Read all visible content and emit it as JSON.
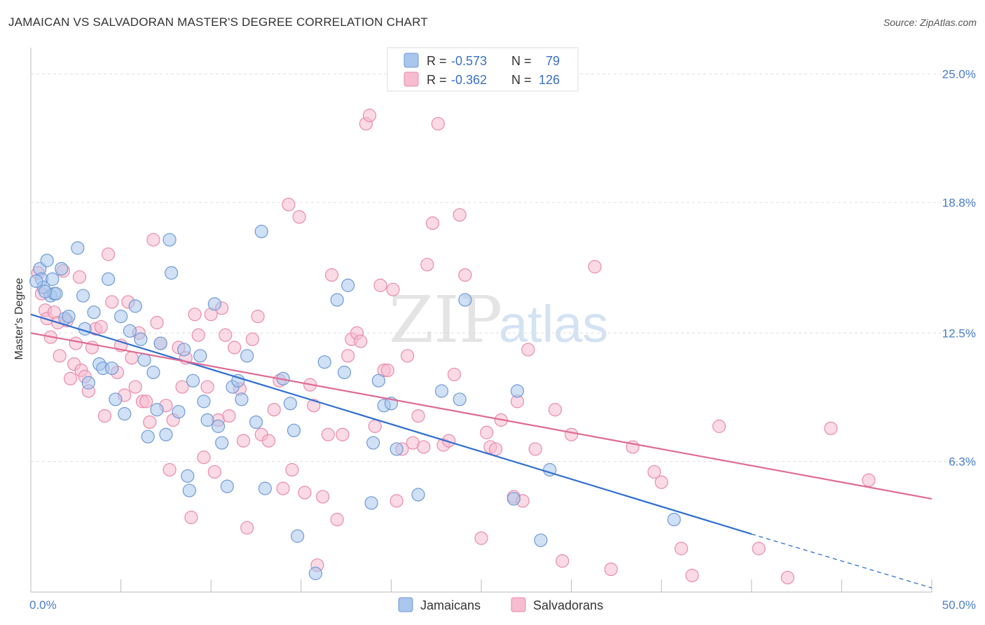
{
  "title": "JAMAICAN VS SALVADORAN MASTER'S DEGREE CORRELATION CHART",
  "source": "Source: ZipAtlas.com",
  "watermark": {
    "zip": "ZIP",
    "atlas": "atlas"
  },
  "legend": {
    "r_label": "R =",
    "n_label": "N =",
    "jamaicans": {
      "r": "-0.573",
      "n": "79"
    },
    "salvadorans": {
      "r": "-0.362",
      "n": "126"
    }
  },
  "colors": {
    "jamaicans_fill": "#a9c6ec",
    "jamaicans_stroke": "#6f9ad6",
    "jamaicans_line": "#2f6fd0",
    "salvadorans_fill": "#f6bcd0",
    "salvadorans_stroke": "#e98bab",
    "salvadorans_line": "#e06a93",
    "tick_text": "#4a7dc9",
    "grid": "#dddddd"
  },
  "chart_data": {
    "type": "scatter",
    "xlabel": "",
    "ylabel": "Master's Degree",
    "xlim": [
      0,
      50
    ],
    "ylim": [
      0,
      26
    ],
    "x_tick_labels": {
      "min": "0.0%",
      "max": "50.0%"
    },
    "y_ticks": [
      {
        "value": 6.3,
        "label": "6.3%"
      },
      {
        "value": 12.5,
        "label": "12.5%"
      },
      {
        "value": 18.8,
        "label": "18.8%"
      },
      {
        "value": 25.0,
        "label": "25.0%"
      }
    ],
    "legend_bottom": [
      "Jamaicans",
      "Salvadorans"
    ],
    "series": [
      {
        "name": "Jamaicans",
        "trend": {
          "x": [
            0,
            40,
            50
          ],
          "y": [
            13.4,
            2.8,
            0.2
          ],
          "solid_until": 40
        },
        "points": [
          [
            0.5,
            15.6
          ],
          [
            0.6,
            15.1
          ],
          [
            0.7,
            14.7
          ],
          [
            0.9,
            16.0
          ],
          [
            1.1,
            14.3
          ],
          [
            1.2,
            15.1
          ],
          [
            1.3,
            14.4
          ],
          [
            1.4,
            14.4
          ],
          [
            1.7,
            15.6
          ],
          [
            1.9,
            13.2
          ],
          [
            2.1,
            13.3
          ],
          [
            2.6,
            16.6
          ],
          [
            2.9,
            14.3
          ],
          [
            3.0,
            12.7
          ],
          [
            3.2,
            10.1
          ],
          [
            3.5,
            13.5
          ],
          [
            3.8,
            11.0
          ],
          [
            4.0,
            10.8
          ],
          [
            4.3,
            15.1
          ],
          [
            4.5,
            10.8
          ],
          [
            4.7,
            9.3
          ],
          [
            5.0,
            13.3
          ],
          [
            5.2,
            8.6
          ],
          [
            5.5,
            12.6
          ],
          [
            5.8,
            13.8
          ],
          [
            6.1,
            12.2
          ],
          [
            6.3,
            11.2
          ],
          [
            6.5,
            7.5
          ],
          [
            6.8,
            10.6
          ],
          [
            7.0,
            8.8
          ],
          [
            7.2,
            12.0
          ],
          [
            7.5,
            7.6
          ],
          [
            7.7,
            17.0
          ],
          [
            7.8,
            15.4
          ],
          [
            8.2,
            8.7
          ],
          [
            8.5,
            11.7
          ],
          [
            8.7,
            5.6
          ],
          [
            8.8,
            4.9
          ],
          [
            9.0,
            10.2
          ],
          [
            9.4,
            11.4
          ],
          [
            9.6,
            9.2
          ],
          [
            9.8,
            8.3
          ],
          [
            10.2,
            13.9
          ],
          [
            10.4,
            8.0
          ],
          [
            10.6,
            7.2
          ],
          [
            10.9,
            5.1
          ],
          [
            11.2,
            9.9
          ],
          [
            11.5,
            10.2
          ],
          [
            11.7,
            9.3
          ],
          [
            12.0,
            11.4
          ],
          [
            12.5,
            8.2
          ],
          [
            12.8,
            17.4
          ],
          [
            13.0,
            5.0
          ],
          [
            14.0,
            10.3
          ],
          [
            14.4,
            9.1
          ],
          [
            14.6,
            7.8
          ],
          [
            14.8,
            2.7
          ],
          [
            15.8,
            0.9
          ],
          [
            16.3,
            11.1
          ],
          [
            17.0,
            14.1
          ],
          [
            17.4,
            10.6
          ],
          [
            17.6,
            14.8
          ],
          [
            18.9,
            4.3
          ],
          [
            19.0,
            7.2
          ],
          [
            19.3,
            10.2
          ],
          [
            19.6,
            9.0
          ],
          [
            20.0,
            9.1
          ],
          [
            20.3,
            6.9
          ],
          [
            21.5,
            4.7
          ],
          [
            22.8,
            9.7
          ],
          [
            23.8,
            9.3
          ],
          [
            24.1,
            14.1
          ],
          [
            26.8,
            4.5
          ],
          [
            27.0,
            9.7
          ],
          [
            28.3,
            2.5
          ],
          [
            28.8,
            5.9
          ],
          [
            35.7,
            3.5
          ],
          [
            0.3,
            15.0
          ],
          [
            0.8,
            14.5
          ]
        ]
      },
      {
        "name": "Salvadorans",
        "trend": {
          "x": [
            0,
            50
          ],
          "y": [
            12.5,
            4.5
          ],
          "solid_until": 50
        },
        "points": [
          [
            0.4,
            15.4
          ],
          [
            0.6,
            14.4
          ],
          [
            0.8,
            13.6
          ],
          [
            0.9,
            13.2
          ],
          [
            1.1,
            12.3
          ],
          [
            1.3,
            13.5
          ],
          [
            1.6,
            11.4
          ],
          [
            1.8,
            15.5
          ],
          [
            2.0,
            13.1
          ],
          [
            2.2,
            10.3
          ],
          [
            2.4,
            11.0
          ],
          [
            2.7,
            15.2
          ],
          [
            2.8,
            10.7
          ],
          [
            3.0,
            10.4
          ],
          [
            3.2,
            9.7
          ],
          [
            3.4,
            11.8
          ],
          [
            3.6,
            12.7
          ],
          [
            3.9,
            12.8
          ],
          [
            4.1,
            8.5
          ],
          [
            4.3,
            16.3
          ],
          [
            4.5,
            14.0
          ],
          [
            4.8,
            10.6
          ],
          [
            5.0,
            11.9
          ],
          [
            5.2,
            9.5
          ],
          [
            5.4,
            14.0
          ],
          [
            5.6,
            11.3
          ],
          [
            5.8,
            9.9
          ],
          [
            6.0,
            12.5
          ],
          [
            6.2,
            9.2
          ],
          [
            6.4,
            9.2
          ],
          [
            6.6,
            8.2
          ],
          [
            6.8,
            17.0
          ],
          [
            7.0,
            13.0
          ],
          [
            7.2,
            12.0
          ],
          [
            7.5,
            9.0
          ],
          [
            7.7,
            5.9
          ],
          [
            7.9,
            8.3
          ],
          [
            8.2,
            11.8
          ],
          [
            8.4,
            9.9
          ],
          [
            8.6,
            11.3
          ],
          [
            8.9,
            3.6
          ],
          [
            9.1,
            13.4
          ],
          [
            9.3,
            12.4
          ],
          [
            9.6,
            6.5
          ],
          [
            9.8,
            9.9
          ],
          [
            10.0,
            13.4
          ],
          [
            10.2,
            5.8
          ],
          [
            10.4,
            8.3
          ],
          [
            10.6,
            13.7
          ],
          [
            10.8,
            12.4
          ],
          [
            11.0,
            8.5
          ],
          [
            11.3,
            11.8
          ],
          [
            11.6,
            9.8
          ],
          [
            11.8,
            7.3
          ],
          [
            12.0,
            3.1
          ],
          [
            12.3,
            12.2
          ],
          [
            12.6,
            13.3
          ],
          [
            12.8,
            7.6
          ],
          [
            13.2,
            7.3
          ],
          [
            13.5,
            8.8
          ],
          [
            13.8,
            10.2
          ],
          [
            14.0,
            5.0
          ],
          [
            14.3,
            18.7
          ],
          [
            14.5,
            5.9
          ],
          [
            14.9,
            18.1
          ],
          [
            15.2,
            4.8
          ],
          [
            15.5,
            10.0
          ],
          [
            15.7,
            9.0
          ],
          [
            15.9,
            1.3
          ],
          [
            16.2,
            4.6
          ],
          [
            16.5,
            7.6
          ],
          [
            16.7,
            15.3
          ],
          [
            17.0,
            3.5
          ],
          [
            17.3,
            7.6
          ],
          [
            17.6,
            11.4
          ],
          [
            17.8,
            12.2
          ],
          [
            18.1,
            12.5
          ],
          [
            18.3,
            12.1
          ],
          [
            18.6,
            22.6
          ],
          [
            18.8,
            23.0
          ],
          [
            19.1,
            8.0
          ],
          [
            19.4,
            14.8
          ],
          [
            19.6,
            10.7
          ],
          [
            19.8,
            10.7
          ],
          [
            20.1,
            14.6
          ],
          [
            20.3,
            4.4
          ],
          [
            20.6,
            6.9
          ],
          [
            20.9,
            11.4
          ],
          [
            21.2,
            7.2
          ],
          [
            21.5,
            8.5
          ],
          [
            21.8,
            7.0
          ],
          [
            22.0,
            15.8
          ],
          [
            22.3,
            17.8
          ],
          [
            22.6,
            22.6
          ],
          [
            22.9,
            7.1
          ],
          [
            23.2,
            7.3
          ],
          [
            23.5,
            10.5
          ],
          [
            23.8,
            18.2
          ],
          [
            24.1,
            15.3
          ],
          [
            25.0,
            2.6
          ],
          [
            25.3,
            7.7
          ],
          [
            25.5,
            7.0
          ],
          [
            25.8,
            6.9
          ],
          [
            26.1,
            8.3
          ],
          [
            26.8,
            4.6
          ],
          [
            27.0,
            9.2
          ],
          [
            27.3,
            4.4
          ],
          [
            27.6,
            11.7
          ],
          [
            28.0,
            6.9
          ],
          [
            29.1,
            8.8
          ],
          [
            29.5,
            1.5
          ],
          [
            30.0,
            7.6
          ],
          [
            31.3,
            15.7
          ],
          [
            32.2,
            1.1
          ],
          [
            33.4,
            7.0
          ],
          [
            34.6,
            5.8
          ],
          [
            35.0,
            5.3
          ],
          [
            36.1,
            2.1
          ],
          [
            36.7,
            0.8
          ],
          [
            38.2,
            8.0
          ],
          [
            40.4,
            2.1
          ],
          [
            42.0,
            0.7
          ],
          [
            44.4,
            7.9
          ],
          [
            46.5,
            5.4
          ],
          [
            1.5,
            13.0
          ],
          [
            2.5,
            12.0
          ]
        ]
      }
    ]
  }
}
